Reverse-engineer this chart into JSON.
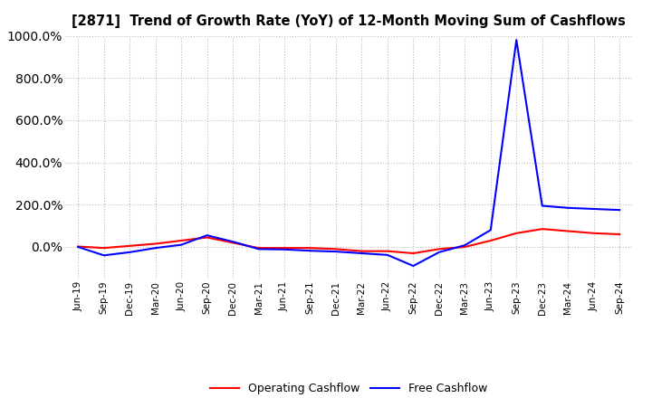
{
  "title": "[2871]  Trend of Growth Rate (YoY) of 12-Month Moving Sum of Cashflows",
  "background_color": "#ffffff",
  "grid_color": "#bbbbbb",
  "operating_color": "#ff0000",
  "free_color": "#0000ff",
  "legend_labels": [
    "Operating Cashflow",
    "Free Cashflow"
  ],
  "x_labels": [
    "Jun-19",
    "Sep-19",
    "Dec-19",
    "Mar-20",
    "Jun-20",
    "Sep-20",
    "Dec-20",
    "Mar-21",
    "Jun-21",
    "Sep-21",
    "Dec-21",
    "Mar-22",
    "Jun-22",
    "Sep-22",
    "Dec-22",
    "Mar-23",
    "Jun-23",
    "Sep-23",
    "Dec-23",
    "Mar-24",
    "Jun-24",
    "Sep-24"
  ],
  "ylim": [
    -150,
    1000
  ],
  "yticks": [
    0,
    200,
    400,
    600,
    800,
    1000
  ],
  "operating_cashflow": [
    2,
    -5,
    5,
    15,
    30,
    45,
    20,
    -5,
    -5,
    -5,
    -10,
    -20,
    -20,
    -30,
    -10,
    0,
    30,
    65,
    85,
    75,
    65,
    60
  ],
  "free_cashflow": [
    0,
    -40,
    -25,
    -5,
    10,
    55,
    25,
    -10,
    -12,
    -18,
    -22,
    -30,
    -38,
    -90,
    -25,
    8,
    80,
    980,
    195,
    185,
    180,
    175
  ]
}
